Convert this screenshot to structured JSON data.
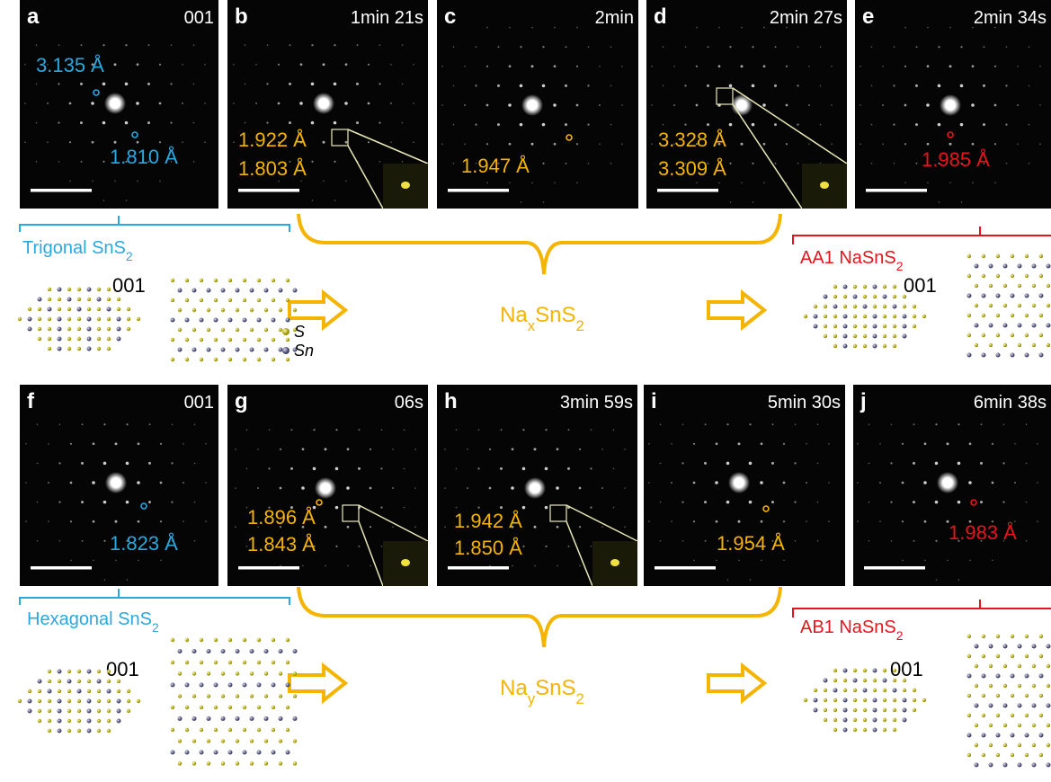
{
  "panels": [
    {
      "letter": "a",
      "tag": "001",
      "measurements": [
        "3.135 Å",
        "1.810 Å"
      ]
    },
    {
      "letter": "b",
      "tag": "1min 21s",
      "measurements": [
        "1.922 Å",
        "1.803 Å"
      ]
    },
    {
      "letter": "c",
      "tag": "2min",
      "measurements": [
        "1.947 Å"
      ]
    },
    {
      "letter": "d",
      "tag": "2min 27s",
      "measurements": [
        "3.328 Å",
        "3.309 Å"
      ]
    },
    {
      "letter": "e",
      "tag": "2min 34s",
      "measurements": [
        "1.985 Å"
      ]
    },
    {
      "letter": "f",
      "tag": "001",
      "measurements": [
        "1.823 Å"
      ]
    },
    {
      "letter": "g",
      "tag": "06s",
      "measurements": [
        "1.896 Å",
        "1.843 Å"
      ]
    },
    {
      "letter": "h",
      "tag": "3min 59s",
      "measurements": [
        "1.942 Å",
        "1.850 Å"
      ]
    },
    {
      "letter": "i",
      "tag": "5min 30s",
      "measurements": [
        "1.954 Å"
      ]
    },
    {
      "letter": "j",
      "tag": "6min 38s",
      "measurements": [
        "1.983 Å"
      ]
    }
  ],
  "rows": [
    {
      "start_phase": [
        "Trigonal SnS",
        "2"
      ],
      "intermediate": [
        "Na",
        "x",
        "SnS",
        "2"
      ],
      "end_phase": [
        "AA1 NaSnS",
        "2"
      ],
      "start_zone": "001",
      "end_zone": "001"
    },
    {
      "start_phase": [
        "Hexagonal SnS",
        "2"
      ],
      "intermediate": [
        "Na",
        "y",
        "SnS",
        "2"
      ],
      "end_phase": [
        "AB1 NaSnS",
        "2"
      ],
      "start_zone": "001",
      "end_zone": "001"
    }
  ],
  "legend": [
    "S",
    "Sn"
  ]
}
